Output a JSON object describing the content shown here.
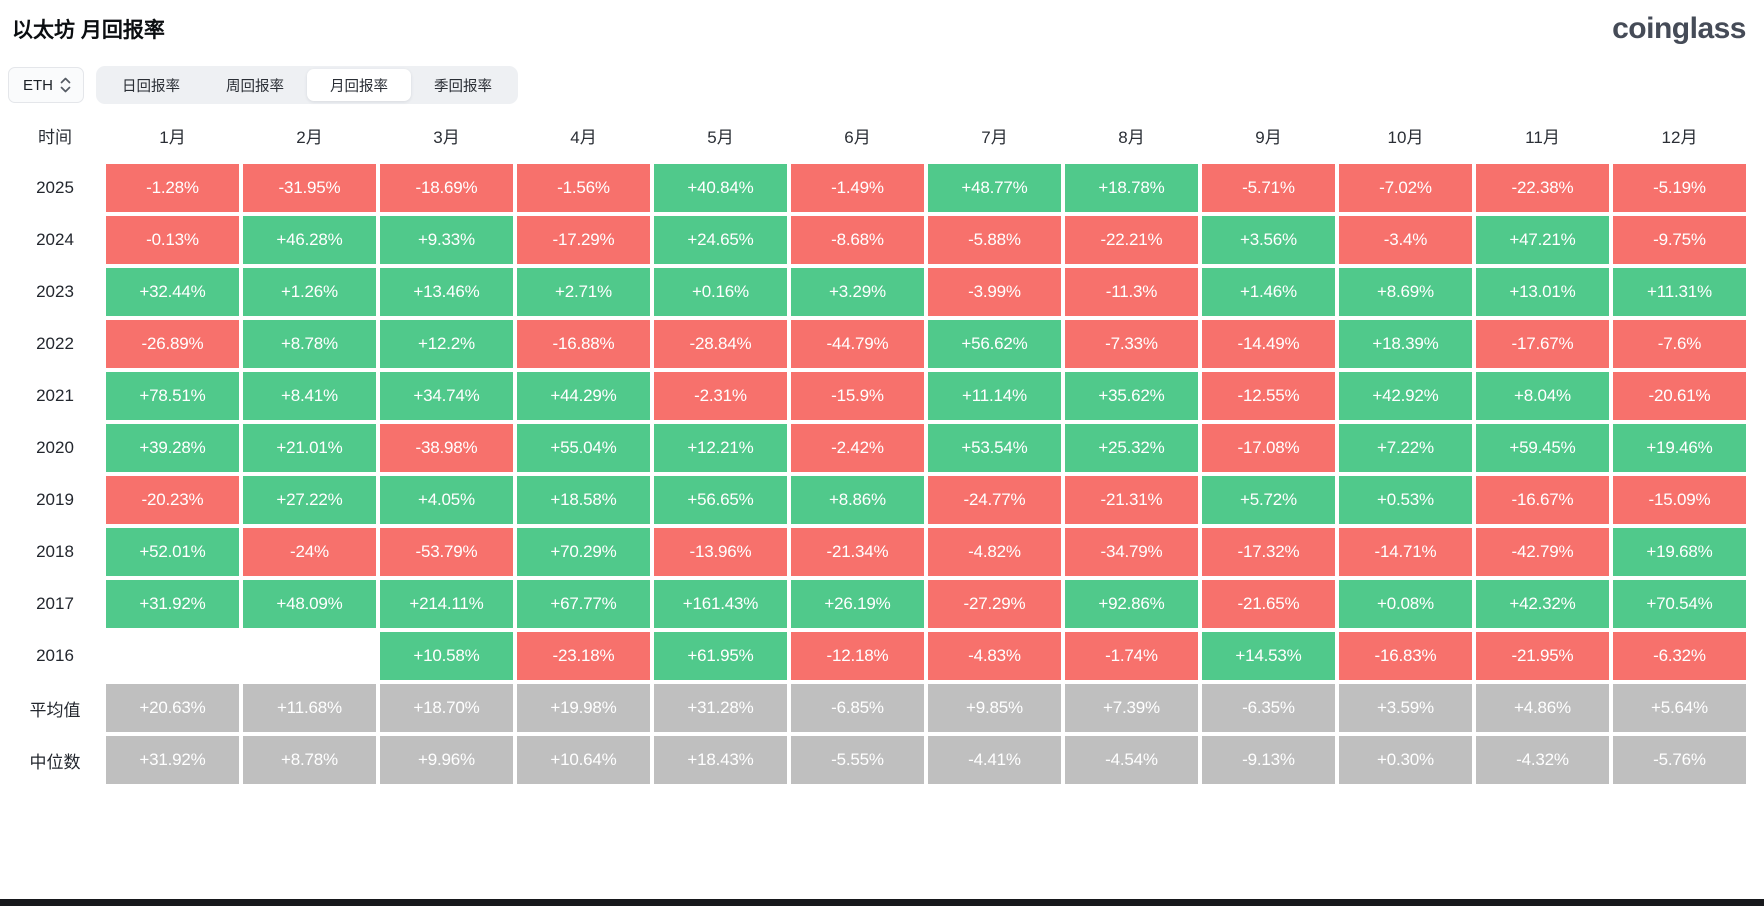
{
  "header": {
    "title": "以太坊 月回报率",
    "logo_text": "coinglass"
  },
  "controls": {
    "coin_select": {
      "value": "ETH",
      "icon": "sort-arrows-icon"
    },
    "tabs": [
      {
        "name": "tab-daily-return",
        "label": "日回报率",
        "active": false
      },
      {
        "name": "tab-weekly-return",
        "label": "周回报率",
        "active": false
      },
      {
        "name": "tab-monthly-return",
        "label": "月回报率",
        "active": true
      },
      {
        "name": "tab-quarterly-return",
        "label": "季回报率",
        "active": false
      }
    ]
  },
  "colors": {
    "positive": "#50c98b",
    "negative": "#f7716c",
    "summary": "#bfbfbf",
    "cell_text": "#ffffff"
  },
  "chart_data": {
    "type": "heatmap",
    "title": "以太坊 月回报率",
    "columns": [
      "时间",
      "1月",
      "2月",
      "3月",
      "4月",
      "5月",
      "6月",
      "7月",
      "8月",
      "9月",
      "10月",
      "11月",
      "12月"
    ],
    "rows": [
      {
        "label": "2025",
        "kind": "year",
        "values": [
          "-1.28%",
          "-31.95%",
          "-18.69%",
          "-1.56%",
          "+40.84%",
          "-1.49%",
          "+48.77%",
          "+18.78%",
          "-5.71%",
          "-7.02%",
          "-22.38%",
          "-5.19%"
        ]
      },
      {
        "label": "2024",
        "kind": "year",
        "values": [
          "-0.13%",
          "+46.28%",
          "+9.33%",
          "-17.29%",
          "+24.65%",
          "-8.68%",
          "-5.88%",
          "-22.21%",
          "+3.56%",
          "-3.4%",
          "+47.21%",
          "-9.75%"
        ]
      },
      {
        "label": "2023",
        "kind": "year",
        "values": [
          "+32.44%",
          "+1.26%",
          "+13.46%",
          "+2.71%",
          "+0.16%",
          "+3.29%",
          "-3.99%",
          "-11.3%",
          "+1.46%",
          "+8.69%",
          "+13.01%",
          "+11.31%"
        ]
      },
      {
        "label": "2022",
        "kind": "year",
        "values": [
          "-26.89%",
          "+8.78%",
          "+12.2%",
          "-16.88%",
          "-28.84%",
          "-44.79%",
          "+56.62%",
          "-7.33%",
          "-14.49%",
          "+18.39%",
          "-17.67%",
          "-7.6%"
        ]
      },
      {
        "label": "2021",
        "kind": "year",
        "values": [
          "+78.51%",
          "+8.41%",
          "+34.74%",
          "+44.29%",
          "-2.31%",
          "-15.9%",
          "+11.14%",
          "+35.62%",
          "-12.55%",
          "+42.92%",
          "+8.04%",
          "-20.61%"
        ]
      },
      {
        "label": "2020",
        "kind": "year",
        "values": [
          "+39.28%",
          "+21.01%",
          "-38.98%",
          "+55.04%",
          "+12.21%",
          "-2.42%",
          "+53.54%",
          "+25.32%",
          "-17.08%",
          "+7.22%",
          "+59.45%",
          "+19.46%"
        ]
      },
      {
        "label": "2019",
        "kind": "year",
        "values": [
          "-20.23%",
          "+27.22%",
          "+4.05%",
          "+18.58%",
          "+56.65%",
          "+8.86%",
          "-24.77%",
          "-21.31%",
          "+5.72%",
          "+0.53%",
          "-16.67%",
          "-15.09%"
        ]
      },
      {
        "label": "2018",
        "kind": "year",
        "values": [
          "+52.01%",
          "-24%",
          "-53.79%",
          "+70.29%",
          "-13.96%",
          "-21.34%",
          "-4.82%",
          "-34.79%",
          "-17.32%",
          "-14.71%",
          "-42.79%",
          "+19.68%"
        ]
      },
      {
        "label": "2017",
        "kind": "year",
        "values": [
          "+31.92%",
          "+48.09%",
          "+214.11%",
          "+67.77%",
          "+161.43%",
          "+26.19%",
          "-27.29%",
          "+92.86%",
          "-21.65%",
          "+0.08%",
          "+42.32%",
          "+70.54%"
        ]
      },
      {
        "label": "2016",
        "kind": "year",
        "values": [
          "",
          "",
          "+10.58%",
          "-23.18%",
          "+61.95%",
          "-12.18%",
          "-4.83%",
          "-1.74%",
          "+14.53%",
          "-16.83%",
          "-21.95%",
          "-6.32%"
        ]
      },
      {
        "label": "平均值",
        "kind": "summary",
        "values": [
          "+20.63%",
          "+11.68%",
          "+18.70%",
          "+19.98%",
          "+31.28%",
          "-6.85%",
          "+9.85%",
          "+7.39%",
          "-6.35%",
          "+3.59%",
          "+4.86%",
          "+5.64%"
        ]
      },
      {
        "label": "中位数",
        "kind": "summary",
        "values": [
          "+31.92%",
          "+8.78%",
          "+9.96%",
          "+10.64%",
          "+18.43%",
          "-5.55%",
          "-4.41%",
          "-4.54%",
          "-9.13%",
          "+0.30%",
          "-4.32%",
          "-5.76%"
        ]
      }
    ]
  }
}
